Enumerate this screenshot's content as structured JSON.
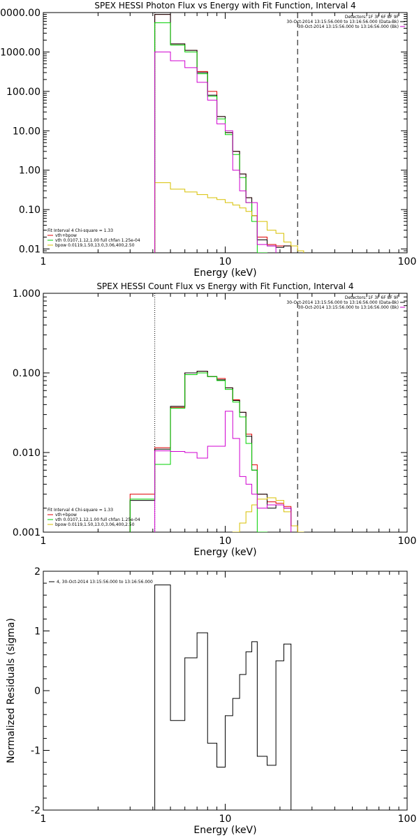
{
  "colors": {
    "data": "#000000",
    "fit": "#e00000",
    "vth": "#00d000",
    "bpow": "#d8c000",
    "bk": "#d000d0"
  },
  "chart_data": [
    {
      "type": "line",
      "id": "photon",
      "title": "SPEX HESSI Photon Flux vs Energy with Fit Function, Interval 4",
      "xlabel": "Energy (keV)",
      "ylabel": "",
      "xscale": "log",
      "yscale": "log",
      "xlim": [
        1,
        100
      ],
      "ylim": [
        0.008,
        10000
      ],
      "xticks": [
        "1",
        "10",
        "100"
      ],
      "yticks": [
        {
          "v": 0.01,
          "label": "0.01"
        },
        {
          "v": 0.1,
          "label": "0.10"
        },
        {
          "v": 1,
          "label": "1.00"
        },
        {
          "v": 10,
          "label": "10.00"
        },
        {
          "v": 100,
          "label": "100.00"
        },
        {
          "v": 1000,
          "label": "1000.00"
        },
        {
          "v": 10000,
          "label": "10000.00"
        }
      ],
      "info_lines": [
        "Detectors: 1F 3F 6F 8F 9F",
        "30-Oct-2014 13:15:56.000 to 13:16:56.000 (Data-Bk)",
        "30-Oct-2014 13:15:56.000 to 13:16:56.000 (Bk)"
      ],
      "legend": [
        "Fit Interval 4   Chi-square = 1.33",
        "vth+bpow",
        "vth 0.0107,1.12,1.00  full chfan 1.25e-04",
        "bpow 0.0119,1.50,13.0,3.06,400,2.50"
      ],
      "vlines": [
        {
          "x": 4.1,
          "style": "dotted"
        },
        {
          "x": 25,
          "style": "dashed"
        }
      ],
      "edges": [
        4.1,
        5,
        6,
        7,
        8,
        9,
        10,
        11,
        12,
        13,
        14,
        15,
        17,
        19,
        21,
        23,
        25,
        27
      ],
      "series": [
        {
          "name": "vth+bpow",
          "color": "fit",
          "values": [
            9000,
            1600,
            1100,
            320,
            100,
            23,
            9,
            3,
            0.8,
            0.2,
            0.07,
            0.02,
            0.013,
            0.012,
            0.012,
            null,
            null
          ]
        },
        {
          "name": "",
          "color": "data",
          "values": [
            9000,
            1600,
            1100,
            300,
            80,
            23,
            9,
            3,
            0.8,
            0.2,
            0.07,
            0.017,
            0.012,
            0.011,
            0.012,
            null,
            null
          ]
        },
        {
          "name": "vth 0.0107,1.12,1.00",
          "color": "vth",
          "values": [
            5500,
            1500,
            1000,
            280,
            75,
            20,
            8,
            2.5,
            0.65,
            0.15,
            0.05,
            0.008,
            null,
            null,
            null,
            null,
            null
          ]
        },
        {
          "name": "bpow 0.0119,1.50,13.0,3.06,400,2.50",
          "color": "bpow",
          "values": [
            0.48,
            0.33,
            0.28,
            0.24,
            0.2,
            0.18,
            0.15,
            0.13,
            0.11,
            0.09,
            0.07,
            0.05,
            0.03,
            0.025,
            0.015,
            0.012,
            0.009
          ]
        },
        {
          "name": "Bk",
          "color": "bk",
          "values": [
            1000,
            600,
            400,
            170,
            60,
            15,
            10,
            1,
            0.3,
            0.15,
            0.15,
            0.013,
            0.012,
            null,
            null,
            null,
            null
          ]
        }
      ]
    },
    {
      "type": "line",
      "id": "count",
      "title": "SPEX HESSI Count Flux vs Energy with Fit Function, Interval 4",
      "xlabel": "Energy (keV)",
      "ylabel": "",
      "xscale": "log",
      "yscale": "log",
      "xlim": [
        1,
        100
      ],
      "ylim": [
        0.001,
        1
      ],
      "xticks": [
        "1",
        "10",
        "100"
      ],
      "yticks": [
        {
          "v": 0.001,
          "label": "0.001"
        },
        {
          "v": 0.01,
          "label": "0.010"
        },
        {
          "v": 0.1,
          "label": "0.100"
        },
        {
          "v": 1,
          "label": "1.000"
        }
      ],
      "info_lines": [
        "Detectors: 1F 3F 6F 8F 9F",
        "30-Oct-2014 13:15:56.000 to 13:16:56.000 (Data-Bk)",
        "30-Oct-2014 13:15:56.000 to 13:16:56.000 (Bk)"
      ],
      "legend": [
        "Fit Interval 4   Chi-square = 1.33",
        "vth+bpow",
        "vth 0.0107,1.12,1.00  full chfan 1.25e-04",
        "bpow 0.0119,1.50,13.0,3.06,400,2.50"
      ],
      "vlines": [
        {
          "x": 4.1,
          "style": "dotted"
        },
        {
          "x": 25,
          "style": "dashed"
        }
      ],
      "edges": [
        3,
        4.1,
        5,
        6,
        7,
        8,
        9,
        10,
        11,
        12,
        13,
        14,
        15,
        17,
        19,
        21,
        23,
        25,
        27
      ],
      "series": [
        {
          "name": "vth+bpow",
          "color": "fit",
          "values": [
            0.003,
            0.0115,
            0.037,
            0.1,
            0.105,
            0.09,
            0.085,
            0.065,
            0.046,
            0.032,
            0.017,
            0.007,
            0.003,
            0.0024,
            0.0023,
            0.0021,
            0.0012,
            null
          ]
        },
        {
          "name": "",
          "color": "data",
          "values": [
            0.0025,
            0.011,
            0.038,
            0.1,
            0.105,
            0.09,
            0.082,
            0.065,
            0.045,
            0.032,
            0.016,
            0.006,
            0.003,
            0.002,
            0.0022,
            0.002,
            0.0012,
            null
          ]
        },
        {
          "name": "vth",
          "color": "vth",
          "values": [
            0.0026,
            0.0071,
            0.036,
            0.095,
            0.1,
            0.09,
            0.08,
            0.062,
            0.043,
            0.028,
            0.013,
            0.006,
            0.001,
            null,
            null,
            null,
            null,
            null
          ]
        },
        {
          "name": "bpow",
          "color": "bpow",
          "values": [
            null,
            null,
            null,
            null,
            null,
            null,
            null,
            null,
            0.001,
            0.0013,
            0.0018,
            0.0022,
            0.0026,
            0.0027,
            0.0025,
            0.0018,
            0.0012,
            0.001
          ]
        },
        {
          "name": "Bk",
          "color": "bk",
          "values": [
            null,
            0.0105,
            0.0103,
            0.01,
            0.0085,
            0.012,
            0.012,
            0.033,
            0.015,
            0.005,
            0.004,
            0.003,
            0.002,
            0.0022,
            0.0022,
            0.002,
            null,
            null
          ]
        }
      ]
    },
    {
      "type": "line",
      "id": "resid",
      "title": "",
      "xlabel": "Energy (keV)",
      "ylabel": "Normalized Residuals (sigma)",
      "xscale": "log",
      "yscale": "linear",
      "xlim": [
        1,
        100
      ],
      "ylim": [
        -2,
        2
      ],
      "xticks": [
        "1",
        "10",
        "100"
      ],
      "yticks": [
        {
          "v": -2,
          "label": "-2"
        },
        {
          "v": -1,
          "label": "-1"
        },
        {
          "v": 0,
          "label": "0"
        },
        {
          "v": 1,
          "label": "1"
        },
        {
          "v": 2,
          "label": "2"
        }
      ],
      "legend": [
        "4, 30-Oct-2014 13:15:56.000 to 13:16:56.000"
      ],
      "edges": [
        4.1,
        5,
        6,
        7,
        8,
        9,
        10,
        11,
        12,
        13,
        14,
        15,
        17,
        19,
        21,
        23,
        25
      ],
      "series": [
        {
          "name": "4, 30-Oct-2014 13:15:56.000 to 13:16:56.000",
          "color": "data",
          "values": [
            1.77,
            -0.5,
            0.55,
            0.97,
            -0.88,
            -1.28,
            -0.42,
            -0.13,
            0.27,
            0.65,
            0.82,
            -1.1,
            -1.25,
            0.5,
            0.78,
            null
          ]
        }
      ]
    }
  ]
}
